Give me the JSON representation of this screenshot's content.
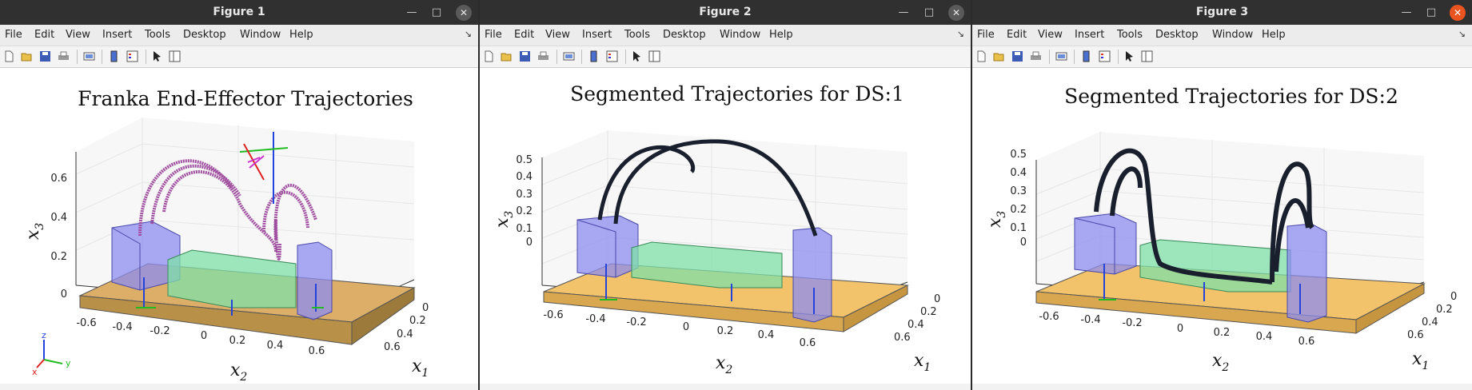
{
  "menu_items": [
    "File",
    "Edit",
    "View",
    "Insert",
    "Tools",
    "Desktop",
    "Window",
    "Help"
  ],
  "toolbar_icons": [
    "new-figure-icon",
    "open-icon",
    "save-icon",
    "print-icon",
    "link-icon",
    "colorbar-icon",
    "legend-icon",
    "pointer-icon",
    "property-inspector-icon"
  ],
  "colors": {
    "table": "#f2c36b",
    "blue_box": "#8c8cf0",
    "green_box": "#7fe0a8",
    "traj_fig1": "#a04fa0",
    "traj_dark": "#1a1f2e",
    "close_active": "#e95420"
  },
  "windows": [
    {
      "title": "Figure 1",
      "plot_title": "Franka End-Effector Trajectories",
      "x2_ticks": [
        "-0.6",
        "-0.4",
        "-0.2",
        "0",
        "0.2",
        "0.4",
        "0.6"
      ],
      "x1_ticks": [
        "0",
        "0.2",
        "0.4",
        "0.6"
      ],
      "x3_ticks": [
        "0",
        "0.2",
        "0.4",
        "0.6"
      ],
      "xlabel_x2": "x",
      "xlabel_x2_sub": "2",
      "xlabel_x1": "x",
      "xlabel_x1_sub": "1",
      "ylabel_x3": "x",
      "ylabel_x3_sub": "3",
      "triad": {
        "z": "z",
        "y": "y",
        "x": "x"
      }
    },
    {
      "title": "Figure 2",
      "plot_title": "Segmented Trajectories for DS:1",
      "x2_ticks": [
        "-0.6",
        "-0.4",
        "-0.2",
        "0",
        "0.2",
        "0.4",
        "0.6"
      ],
      "x1_ticks": [
        "0",
        "0.2",
        "0.4",
        "0.6"
      ],
      "x3_ticks": [
        "0",
        "0.1",
        "0.2",
        "0.3",
        "0.4",
        "0.5"
      ],
      "xlabel_x2": "x",
      "xlabel_x2_sub": "2",
      "xlabel_x1": "x",
      "xlabel_x1_sub": "1",
      "ylabel_x3": "x",
      "ylabel_x3_sub": "3"
    },
    {
      "title": "Figure 3",
      "plot_title": "Segmented Trajectories for DS:2",
      "x2_ticks": [
        "-0.6",
        "-0.4",
        "-0.2",
        "0",
        "0.2",
        "0.4",
        "0.6"
      ],
      "x1_ticks": [
        "0",
        "0.2",
        "0.4",
        "0.6"
      ],
      "x3_ticks": [
        "0",
        "0.1",
        "0.2",
        "0.3",
        "0.4",
        "0.5"
      ],
      "xlabel_x2": "x",
      "xlabel_x2_sub": "2",
      "xlabel_x1": "x",
      "xlabel_x1_sub": "1",
      "ylabel_x3": "x",
      "ylabel_x3_sub": "3"
    }
  ]
}
